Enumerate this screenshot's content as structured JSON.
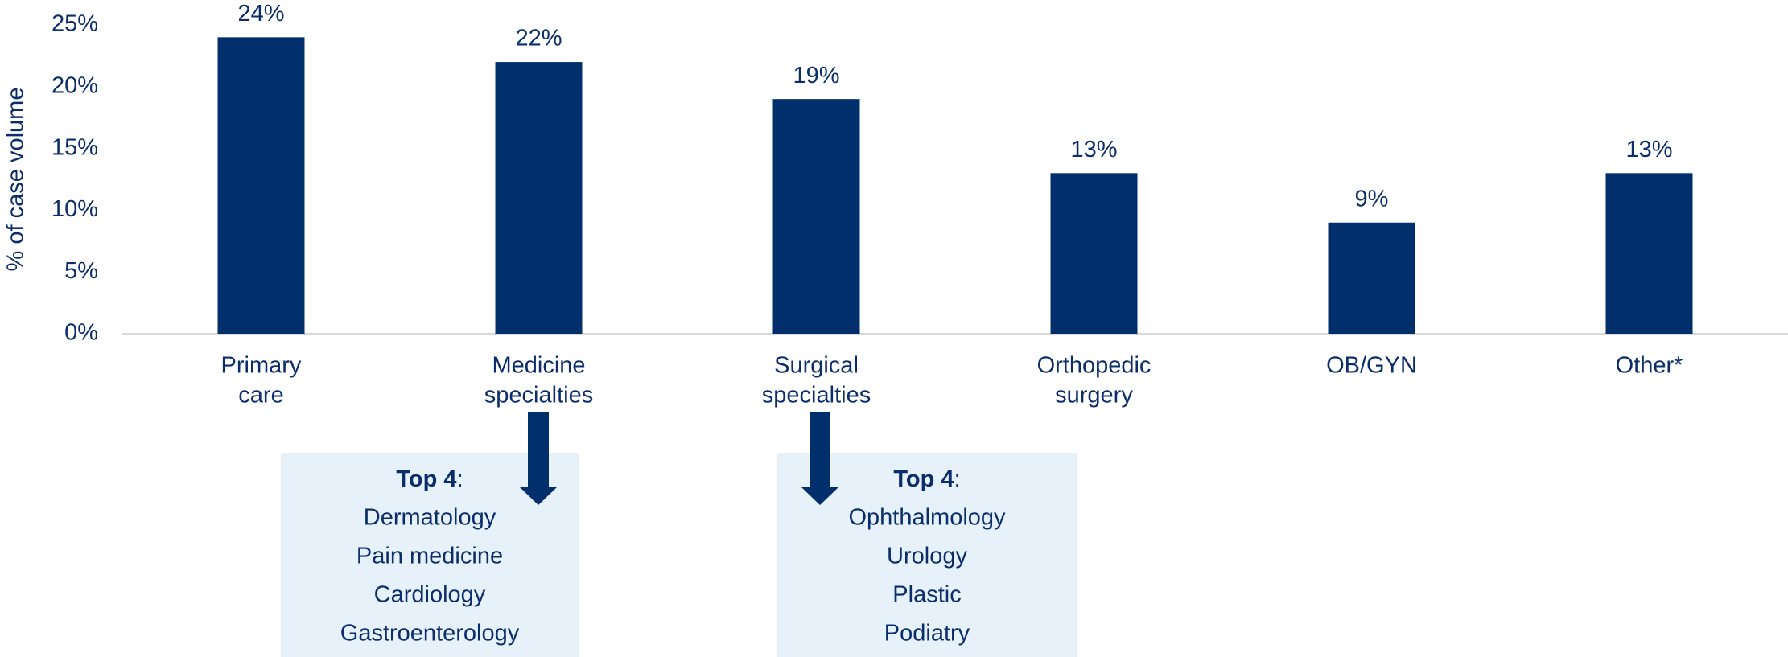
{
  "chart_data": {
    "type": "bar",
    "ylabel": "% of case volume",
    "categories": [
      [
        "Primary",
        "care"
      ],
      [
        "Medicine",
        "specialties"
      ],
      [
        "Surgical",
        "specialties"
      ],
      [
        "Orthopedic",
        "surgery"
      ],
      [
        "OB/GYN"
      ],
      [
        "Other*"
      ]
    ],
    "values": [
      24,
      22,
      19,
      13,
      9,
      13
    ],
    "value_labels": [
      "24%",
      "22%",
      "19%",
      "13%",
      "9%",
      "13%"
    ],
    "color": "#002f6c",
    "ylim": [
      0,
      25
    ],
    "yticks": [
      {
        "value": 0,
        "label": "0%"
      },
      {
        "value": 5,
        "label": "5%"
      },
      {
        "value": 10,
        "label": "10%"
      },
      {
        "value": 15,
        "label": "15%"
      },
      {
        "value": 20,
        "label": "20%"
      },
      {
        "value": 25,
        "label": "25%"
      }
    ],
    "grid": false
  },
  "callouts": [
    {
      "heading": "Top 4",
      "suffix": ":",
      "items": [
        "Dermatology",
        "Pain medicine",
        "Cardiology",
        "Gastroenterology"
      ]
    },
    {
      "heading": "Top 4",
      "suffix": ":",
      "items": [
        "Ophthalmology",
        "Urology",
        "Plastic",
        "Podiatry"
      ]
    }
  ]
}
